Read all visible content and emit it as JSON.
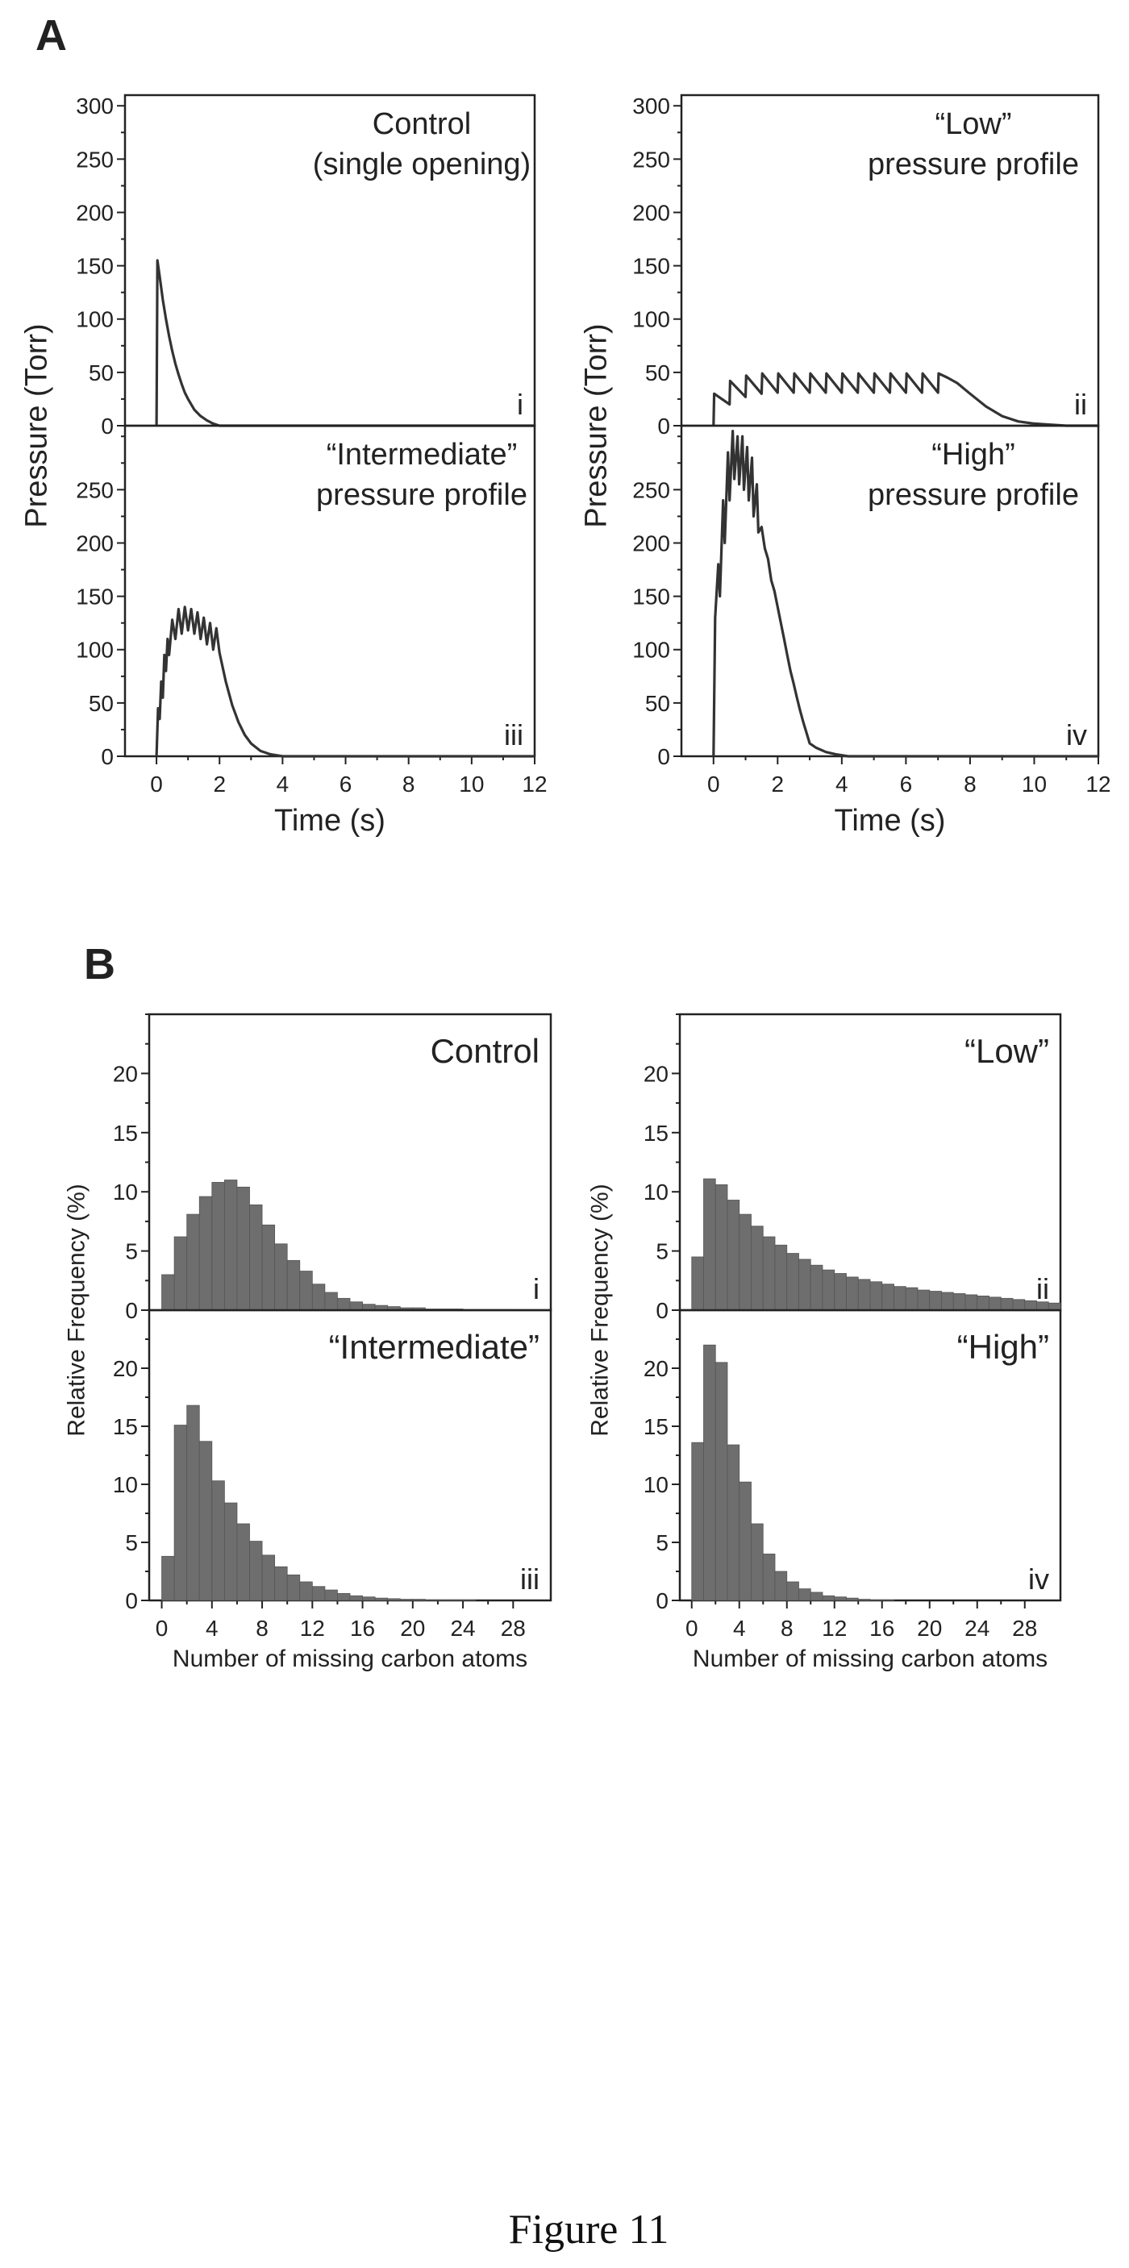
{
  "figure": {
    "panel_a_label": "A",
    "panel_b_label": "B",
    "caption": "Figure 11"
  },
  "chart_data": [
    {
      "id": "A-i",
      "type": "line",
      "annotation": [
        "Control",
        "(single opening)"
      ],
      "roman": "i",
      "ylabel": "Pressure (Torr)",
      "xlabel": "",
      "xlim": [
        -1,
        12
      ],
      "ylim": [
        0,
        310
      ],
      "x_ticks": [],
      "y_ticks": [
        0,
        50,
        100,
        150,
        200,
        250,
        300
      ],
      "x": [
        0,
        0.03,
        0.1,
        0.2,
        0.3,
        0.4,
        0.5,
        0.6,
        0.7,
        0.8,
        0.9,
        1.0,
        1.2,
        1.4,
        1.6,
        1.8,
        2.0,
        3,
        12
      ],
      "y": [
        0,
        155,
        140,
        118,
        100,
        84,
        70,
        58,
        48,
        39,
        31,
        25,
        15,
        9,
        5,
        2,
        0,
        0,
        0
      ]
    },
    {
      "id": "A-ii",
      "type": "line",
      "annotation": [
        "“Low”",
        "pressure profile"
      ],
      "roman": "ii",
      "ylabel": "Pressure (Torr)",
      "xlabel": "",
      "xlim": [
        -1,
        12
      ],
      "ylim": [
        0,
        310
      ],
      "x_ticks": [],
      "y_ticks": [
        0,
        50,
        100,
        150,
        200,
        250,
        300
      ],
      "x": [
        0,
        0.02,
        0.5,
        0.52,
        1.0,
        1.02,
        1.5,
        1.52,
        2.0,
        2.02,
        2.5,
        2.52,
        3.0,
        3.02,
        3.5,
        3.52,
        4.0,
        4.02,
        4.5,
        4.52,
        5.0,
        5.02,
        5.5,
        5.52,
        6.0,
        6.02,
        6.5,
        6.52,
        7.0,
        7.02,
        7.3,
        7.6,
        8.0,
        8.5,
        9.0,
        9.5,
        10.0,
        10.5,
        11.0,
        12
      ],
      "y": [
        0,
        30,
        20,
        42,
        27,
        47,
        30,
        49,
        31,
        49,
        31,
        49,
        31,
        49,
        31,
        49,
        31,
        49,
        31,
        49,
        31,
        49,
        31,
        49,
        31,
        49,
        31,
        49,
        31,
        49,
        45,
        40,
        30,
        18,
        9,
        4,
        2,
        1,
        0,
        0
      ]
    },
    {
      "id": "A-iii",
      "type": "line",
      "annotation": [
        "“Intermediate”",
        "pressure profile"
      ],
      "roman": "iii",
      "ylabel": "Pressure (Torr)",
      "xlabel": "Time (s)",
      "xlim": [
        -1,
        12
      ],
      "ylim": [
        0,
        310
      ],
      "x_ticks": [
        0,
        2,
        4,
        6,
        8,
        10,
        12
      ],
      "y_ticks": [
        0,
        50,
        100,
        150,
        200,
        250
      ],
      "x": [
        0,
        0.05,
        0.1,
        0.15,
        0.2,
        0.25,
        0.3,
        0.35,
        0.4,
        0.5,
        0.6,
        0.7,
        0.8,
        0.9,
        1.0,
        1.1,
        1.2,
        1.3,
        1.4,
        1.5,
        1.6,
        1.7,
        1.8,
        1.9,
        2.0,
        2.2,
        2.4,
        2.6,
        2.8,
        3.0,
        3.3,
        3.6,
        4.0,
        5,
        12
      ],
      "y": [
        0,
        45,
        35,
        70,
        55,
        95,
        80,
        110,
        95,
        128,
        110,
        138,
        115,
        140,
        118,
        138,
        115,
        135,
        110,
        130,
        105,
        125,
        100,
        120,
        97,
        70,
        48,
        32,
        20,
        12,
        5,
        2,
        0,
        0,
        0
      ]
    },
    {
      "id": "A-iv",
      "type": "line",
      "annotation": [
        "“High”",
        "pressure profile"
      ],
      "roman": "iv",
      "ylabel": "Pressure (Torr)",
      "xlabel": "Time (s)",
      "xlim": [
        -1,
        12
      ],
      "ylim": [
        0,
        310
      ],
      "x_ticks": [
        0,
        2,
        4,
        6,
        8,
        10,
        12
      ],
      "y_ticks": [
        0,
        50,
        100,
        150,
        200,
        250
      ],
      "x": [
        0,
        0.05,
        0.15,
        0.2,
        0.3,
        0.35,
        0.45,
        0.5,
        0.6,
        0.65,
        0.75,
        0.8,
        0.9,
        0.95,
        1.05,
        1.1,
        1.2,
        1.25,
        1.35,
        1.4,
        1.5,
        1.6,
        1.7,
        1.8,
        1.9,
        2.0,
        2.1,
        2.2,
        2.3,
        2.4,
        2.5,
        2.6,
        2.7,
        2.8,
        2.9,
        3.0,
        3.2,
        3.5,
        3.8,
        4.2,
        5,
        12
      ],
      "y": [
        0,
        130,
        180,
        150,
        240,
        200,
        285,
        240,
        305,
        260,
        300,
        255,
        300,
        250,
        290,
        240,
        280,
        225,
        255,
        210,
        215,
        195,
        185,
        165,
        155,
        140,
        125,
        110,
        95,
        80,
        68,
        55,
        43,
        32,
        22,
        12,
        8,
        4,
        2,
        0,
        0,
        0
      ]
    },
    {
      "id": "B-i",
      "type": "bar",
      "annotation": "Control",
      "roman": "i",
      "ylabel": "Relative Frequency (%)",
      "xlabel": "",
      "xlim": [
        -1,
        31
      ],
      "ylim": [
        0,
        25
      ],
      "bin_width": 1,
      "x_ticks": [],
      "y_ticks": [
        0,
        5,
        10,
        15,
        20
      ],
      "bins_start": 0,
      "values": [
        3.0,
        6.2,
        8.1,
        9.6,
        10.8,
        11.0,
        10.4,
        8.9,
        7.2,
        5.6,
        4.2,
        3.3,
        2.2,
        1.5,
        1.0,
        0.7,
        0.5,
        0.4,
        0.3,
        0.2,
        0.2,
        0.1,
        0.1,
        0.1,
        0.05,
        0.05,
        0.05,
        0.05,
        0.0,
        0.0
      ]
    },
    {
      "id": "B-ii",
      "type": "bar",
      "annotation": "“Low”",
      "roman": "ii",
      "ylabel": "Relative Frequency (%)",
      "xlabel": "",
      "xlim": [
        -1,
        31
      ],
      "ylim": [
        0,
        25
      ],
      "bin_width": 1,
      "x_ticks": [],
      "y_ticks": [
        0,
        5,
        10,
        15,
        20
      ],
      "bins_start": 0,
      "values": [
        4.5,
        11.1,
        10.6,
        9.3,
        8.1,
        7.1,
        6.2,
        5.5,
        4.8,
        4.3,
        3.8,
        3.4,
        3.1,
        2.8,
        2.6,
        2.4,
        2.2,
        2.0,
        1.9,
        1.7,
        1.6,
        1.5,
        1.4,
        1.3,
        1.2,
        1.1,
        1.0,
        0.9,
        0.8,
        0.7,
        0.6
      ]
    },
    {
      "id": "B-iii",
      "type": "bar",
      "annotation": "“Intermediate”",
      "roman": "iii",
      "ylabel": "Relative Frequency (%)",
      "xlabel": "Number of missing carbon atoms",
      "xlim": [
        -1,
        31
      ],
      "ylim": [
        0,
        25
      ],
      "bin_width": 1,
      "x_ticks": [
        0,
        4,
        8,
        12,
        16,
        20,
        24,
        28
      ],
      "y_ticks": [
        0,
        5,
        10,
        15,
        20
      ],
      "bins_start": 0,
      "values": [
        3.8,
        15.1,
        16.8,
        13.7,
        10.3,
        8.4,
        6.6,
        5.1,
        3.9,
        2.9,
        2.2,
        1.6,
        1.2,
        0.9,
        0.6,
        0.4,
        0.3,
        0.2,
        0.15,
        0.1,
        0.1,
        0.05,
        0.05,
        0.05,
        0.05,
        0.0,
        0.0,
        0.0,
        0.0,
        0.0
      ]
    },
    {
      "id": "B-iv",
      "type": "bar",
      "annotation": "“High”",
      "roman": "iv",
      "ylabel": "Relative Frequency (%)",
      "xlabel": "Number of missing carbon atoms",
      "xlim": [
        -1,
        31
      ],
      "ylim": [
        0,
        25
      ],
      "bin_width": 1,
      "x_ticks": [
        0,
        4,
        8,
        12,
        16,
        20,
        24,
        28
      ],
      "y_ticks": [
        0,
        5,
        10,
        15,
        20
      ],
      "bins_start": 0,
      "values": [
        13.6,
        22.0,
        20.5,
        13.4,
        10.2,
        6.6,
        4.0,
        2.5,
        1.6,
        1.0,
        0.7,
        0.4,
        0.3,
        0.2,
        0.1,
        0.05,
        0.05,
        0.0,
        0.0,
        0.0,
        0.0,
        0.0,
        0.0,
        0.0,
        0.0,
        0.0,
        0.0,
        0.0,
        0.0,
        0.0
      ]
    }
  ]
}
